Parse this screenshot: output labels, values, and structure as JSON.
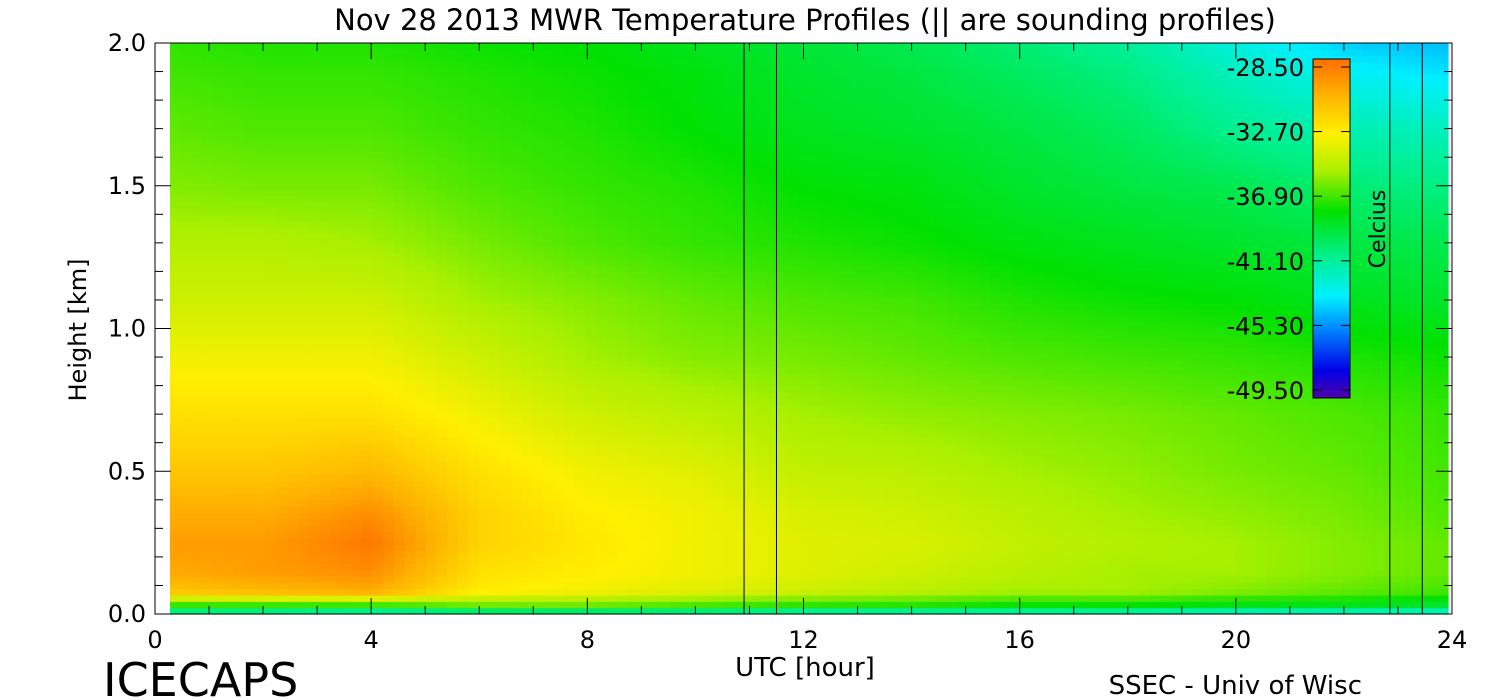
{
  "chart_data": {
    "type": "heatmap",
    "title": "Nov 28 2013 MWR Temperature Profiles (|| are sounding profiles)",
    "xlabel": "UTC [hour]",
    "ylabel": "Height [km]",
    "xlim": [
      0,
      24
    ],
    "ylim": [
      0.0,
      2.0
    ],
    "x_ticks": [
      "0",
      "4",
      "8",
      "12",
      "16",
      "20",
      "24"
    ],
    "y_ticks": [
      "0.0",
      "0.5",
      "1.0",
      "1.5",
      "2.0"
    ],
    "colorbar": {
      "label": "Celcius",
      "ticks": [
        "-28.50",
        "-32.70",
        "-36.90",
        "-41.10",
        "-45.30",
        "-49.50"
      ],
      "range": [
        -49.5,
        -28.5
      ]
    },
    "sounding_times_utc": [
      10.9,
      11.5,
      22.85,
      23.45
    ],
    "heights_km": [
      0.0,
      0.03,
      0.08,
      0.15,
      0.25,
      0.35,
      0.5,
      0.7,
      0.9,
      1.1,
      1.3,
      1.5,
      1.7,
      1.9,
      2.0
    ],
    "times_utc": [
      0,
      2,
      4,
      6,
      8,
      10,
      12,
      14,
      16,
      18,
      20,
      22,
      24
    ],
    "temperature_c": [
      [
        -42.0,
        -42.0,
        -42.5,
        -42.0,
        -42.0,
        -42.0,
        -42.5,
        -42.5,
        -42.5,
        -42.5,
        -43.0,
        -43.0,
        -43.0
      ],
      [
        -37.5,
        -37.5,
        -37.5,
        -36.5,
        -36.5,
        -37.0,
        -37.5,
        -37.5,
        -38.0,
        -38.0,
        -38.5,
        -38.5,
        -39.0
      ],
      [
        -31.5,
        -31.0,
        -30.5,
        -33.0,
        -33.5,
        -34.0,
        -34.5,
        -35.0,
        -35.5,
        -35.5,
        -36.0,
        -36.5,
        -37.0
      ],
      [
        -30.5,
        -30.0,
        -29.5,
        -32.5,
        -33.0,
        -33.5,
        -34.0,
        -34.5,
        -35.0,
        -35.5,
        -35.5,
        -36.0,
        -36.5
      ],
      [
        -30.0,
        -30.0,
        -28.8,
        -32.0,
        -32.8,
        -33.5,
        -34.0,
        -34.2,
        -34.8,
        -35.2,
        -35.5,
        -36.0,
        -36.5
      ],
      [
        -30.5,
        -30.5,
        -29.5,
        -32.0,
        -33.0,
        -33.5,
        -34.2,
        -34.5,
        -35.0,
        -35.5,
        -35.8,
        -36.2,
        -36.8
      ],
      [
        -31.5,
        -31.5,
        -31.0,
        -32.5,
        -33.5,
        -34.0,
        -34.8,
        -35.0,
        -35.5,
        -35.8,
        -36.2,
        -36.5,
        -37.0
      ],
      [
        -32.5,
        -32.5,
        -32.5,
        -33.5,
        -34.5,
        -35.0,
        -35.5,
        -35.8,
        -36.0,
        -36.2,
        -36.5,
        -36.8,
        -37.2
      ],
      [
        -33.5,
        -33.5,
        -33.5,
        -34.5,
        -35.5,
        -36.0,
        -36.2,
        -36.5,
        -36.8,
        -37.0,
        -37.2,
        -37.5,
        -37.8
      ],
      [
        -34.5,
        -34.5,
        -34.5,
        -35.5,
        -36.0,
        -36.5,
        -36.8,
        -37.0,
        -37.5,
        -37.8,
        -38.0,
        -38.5,
        -38.8
      ],
      [
        -35.2,
        -35.2,
        -35.5,
        -36.2,
        -36.8,
        -37.2,
        -37.5,
        -37.8,
        -38.2,
        -38.5,
        -38.8,
        -39.2,
        -39.5
      ],
      [
        -36.0,
        -36.2,
        -36.2,
        -36.8,
        -37.2,
        -37.5,
        -38.0,
        -38.2,
        -38.8,
        -39.2,
        -39.5,
        -40.2,
        -40.5
      ],
      [
        -36.5,
        -36.8,
        -36.8,
        -37.2,
        -37.5,
        -38.0,
        -38.5,
        -38.8,
        -39.2,
        -39.8,
        -40.8,
        -41.5,
        -41.8
      ],
      [
        -37.0,
        -37.2,
        -37.2,
        -37.5,
        -37.8,
        -38.2,
        -38.8,
        -39.2,
        -39.8,
        -40.5,
        -41.8,
        -43.0,
        -43.5
      ],
      [
        -37.2,
        -37.5,
        -37.5,
        -37.8,
        -38.0,
        -38.5,
        -39.0,
        -39.5,
        -40.2,
        -41.0,
        -42.5,
        -43.8,
        -44.2
      ]
    ]
  },
  "footer": {
    "left": "ICECAPS",
    "right": "SSEC - Univ of Wisc"
  },
  "colors": {
    "background": "#ffffff",
    "axis": "#000000",
    "sounding_line": "#000000"
  }
}
